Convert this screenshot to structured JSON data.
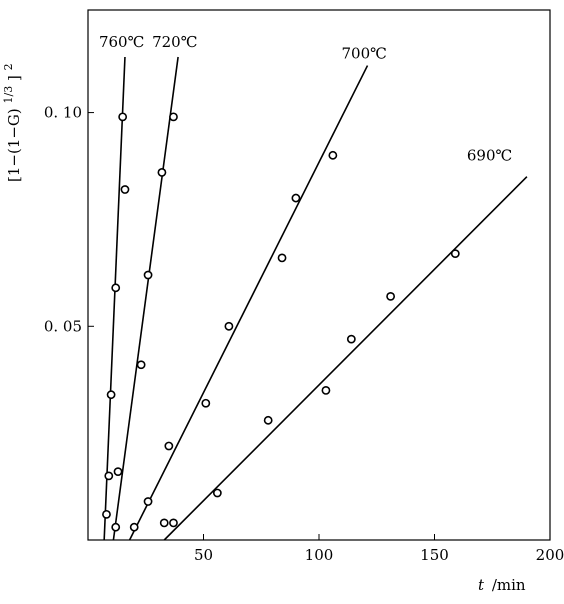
{
  "chart_data": {
    "type": "scatter",
    "title": "",
    "xlabel_var": "t",
    "xlabel_unit": "/min",
    "ylabel_expr": "[1−(1−G)",
    "ylabel_exp_inner": "1/3",
    "ylabel_exp_outer": "2",
    "xlim": [
      0,
      200
    ],
    "ylim": [
      0,
      0.124
    ],
    "xticks": [
      {
        "value": 50,
        "label": "50"
      },
      {
        "value": 100,
        "label": "100"
      },
      {
        "value": 150,
        "label": "150"
      },
      {
        "value": 200,
        "label": "200"
      }
    ],
    "yticks": [
      {
        "value": 0.05,
        "label": "0. 05"
      },
      {
        "value": 0.1,
        "label": "0. 10"
      }
    ],
    "grid": false,
    "legend": "none",
    "series": [
      {
        "name": "760℃",
        "points": [
          [
            8,
            0.006
          ],
          [
            9,
            0.015
          ],
          [
            10,
            0.034
          ],
          [
            12,
            0.059
          ],
          [
            15,
            0.099
          ],
          [
            16,
            0.082
          ]
        ],
        "fit": [
          [
            7,
            0
          ],
          [
            16,
            0.113
          ]
        ]
      },
      {
        "name": "720℃",
        "points": [
          [
            12,
            0.003
          ],
          [
            13,
            0.016
          ],
          [
            20,
            0.003
          ],
          [
            26,
            0.009
          ],
          [
            23,
            0.041
          ],
          [
            26,
            0.062
          ],
          [
            32,
            0.086
          ],
          [
            37,
            0.099
          ]
        ],
        "fit": [
          [
            11,
            0
          ],
          [
            39,
            0.113
          ]
        ]
      },
      {
        "name": "700℃",
        "points": [
          [
            33,
            0.004
          ],
          [
            35,
            0.022
          ],
          [
            51,
            0.032
          ],
          [
            61,
            0.05
          ],
          [
            84,
            0.066
          ],
          [
            90,
            0.08
          ],
          [
            106,
            0.09
          ]
        ],
        "fit": [
          [
            18,
            0
          ],
          [
            121,
            0.111
          ]
        ]
      },
      {
        "name": "690℃",
        "points": [
          [
            37,
            0.004
          ],
          [
            56,
            0.011
          ],
          [
            78,
            0.028
          ],
          [
            103,
            0.035
          ],
          [
            114,
            0.047
          ],
          [
            131,
            0.057
          ],
          [
            159,
            0.067
          ]
        ],
        "fit": [
          [
            33,
            0
          ],
          [
            190,
            0.085
          ]
        ]
      }
    ]
  }
}
